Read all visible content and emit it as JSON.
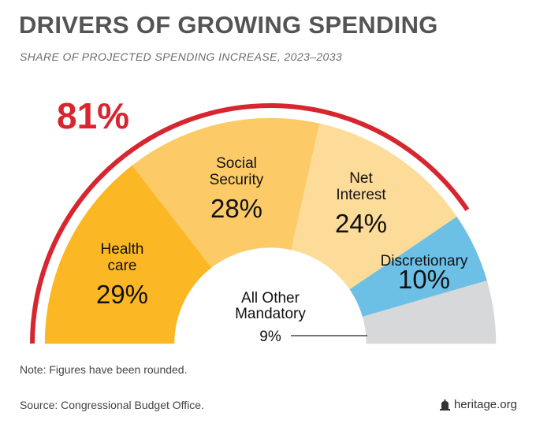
{
  "header": {
    "title": "DRIVERS OF GROWING SPENDING",
    "subtitle": "SHARE OF PROJECTED SPENDING INCREASE, 2023–2033"
  },
  "chart_data": {
    "type": "pie",
    "shape": "semicircle-donut",
    "title": "DRIVERS OF GROWING SPENDING",
    "subtitle": "SHARE OF PROJECTED SPENDING INCREASE, 2023–2033",
    "total_percent": 100,
    "slices": [
      {
        "name": "Health care",
        "label_lines": [
          "Health",
          "care"
        ],
        "value": 29,
        "display": "29%",
        "color": "#FBB824"
      },
      {
        "name": "Social Security",
        "label_lines": [
          "Social",
          "Security"
        ],
        "value": 28,
        "display": "28%",
        "color": "#FCCA66"
      },
      {
        "name": "Net Interest",
        "label_lines": [
          "Net",
          "Interest"
        ],
        "value": 24,
        "display": "24%",
        "color": "#FDDC99"
      },
      {
        "name": "Discretionary",
        "label_lines": [
          "Discretionary"
        ],
        "value": 10,
        "display": "10%",
        "color": "#6CC0E6"
      },
      {
        "name": "All Other Mandatory",
        "label_lines": [
          "All Other",
          "Mandatory"
        ],
        "value": 9,
        "display": "9%",
        "color": "#D7D8DA"
      }
    ],
    "bracket": {
      "label": "81%",
      "value": 81,
      "covers": [
        "Health care",
        "Social Security",
        "Net Interest"
      ],
      "color": "#D7262F"
    }
  },
  "footer": {
    "note": "Note: Figures have been rounded.",
    "source": "Source: Congressional Budget Office.",
    "brand": "heritage.org"
  }
}
